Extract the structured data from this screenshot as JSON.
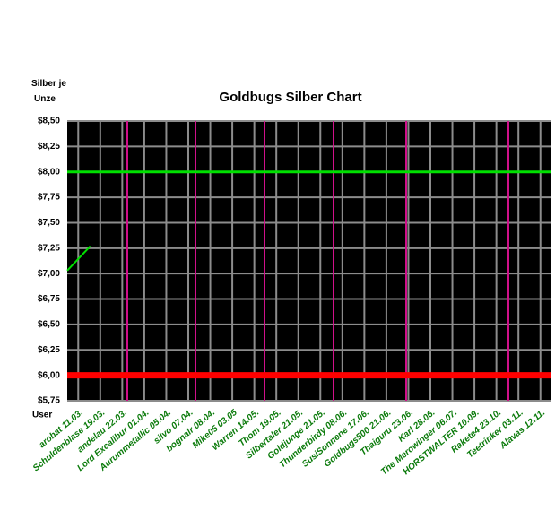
{
  "chart_data": {
    "type": "line",
    "title": "Goldbugs Silber Chart",
    "y_label": "Silber je Unze",
    "x_label": "User",
    "categories": [
      "arobat 11.03.",
      "Schuldenblase 19.03.",
      "andelau 22.03.",
      "Lord Excalibur 01.04.",
      "Aurummetallic 05.04.",
      "silvo 07.04.",
      "bognalr 08.04.",
      "Mike05 03.05",
      "Warren 14.05.",
      "Thom 19.05.",
      "Silbertaler 21.05.",
      "Goldjunge 21.05.",
      "Thunderbirdy 08.06.",
      "SusiSonnene 17.06.",
      "Goldbugs500 21.06.",
      "Thaiguru 23.06.",
      "Karl 28.06.",
      "The Merowinger 06.07.",
      "HORSTWALTER 10.09.",
      "Rakete4 23.10.",
      "Teetrinker 03.11.",
      "Alavas 12.11."
    ],
    "series": [
      {
        "color": "#00e000",
        "width": 3,
        "values": [
          8,
          8,
          8,
          8,
          8,
          8,
          8,
          8,
          8,
          8,
          8,
          8,
          8,
          8,
          8,
          8,
          8,
          8,
          8,
          8,
          8,
          8
        ]
      },
      {
        "color": "#ff0000",
        "width": 7,
        "values": [
          6,
          6,
          6,
          6,
          6,
          6,
          6,
          6,
          6,
          6,
          6,
          6,
          6,
          6,
          6,
          6,
          6,
          6,
          6,
          6,
          6,
          6
        ]
      },
      {
        "color": "#00e000",
        "width": 2,
        "values": [
          7.03,
          7.27,
          null,
          null,
          null,
          null,
          null,
          null,
          null,
          null,
          null,
          null,
          null,
          null,
          null,
          null,
          null,
          null,
          null,
          null,
          null,
          null
        ]
      }
    ],
    "ylim": [
      5.75,
      8.5
    ],
    "yticks": [
      {
        "value": 5.75,
        "label": "$5,75"
      },
      {
        "value": 6,
        "label": "$6,00"
      },
      {
        "value": 6.25,
        "label": "$6,25"
      },
      {
        "value": 6.5,
        "label": "$6,50"
      },
      {
        "value": 6.75,
        "label": "$6,75"
      },
      {
        "value": 7,
        "label": "$7,00"
      },
      {
        "value": 7.25,
        "label": "$7,25"
      },
      {
        "value": 7.5,
        "label": "$7,50"
      },
      {
        "value": 7.75,
        "label": "$7,75"
      },
      {
        "value": 8,
        "label": "$8,00"
      },
      {
        "value": 8.25,
        "label": "$8,25"
      },
      {
        "value": 8.5,
        "label": "$8,50"
      }
    ],
    "grid": true
  }
}
